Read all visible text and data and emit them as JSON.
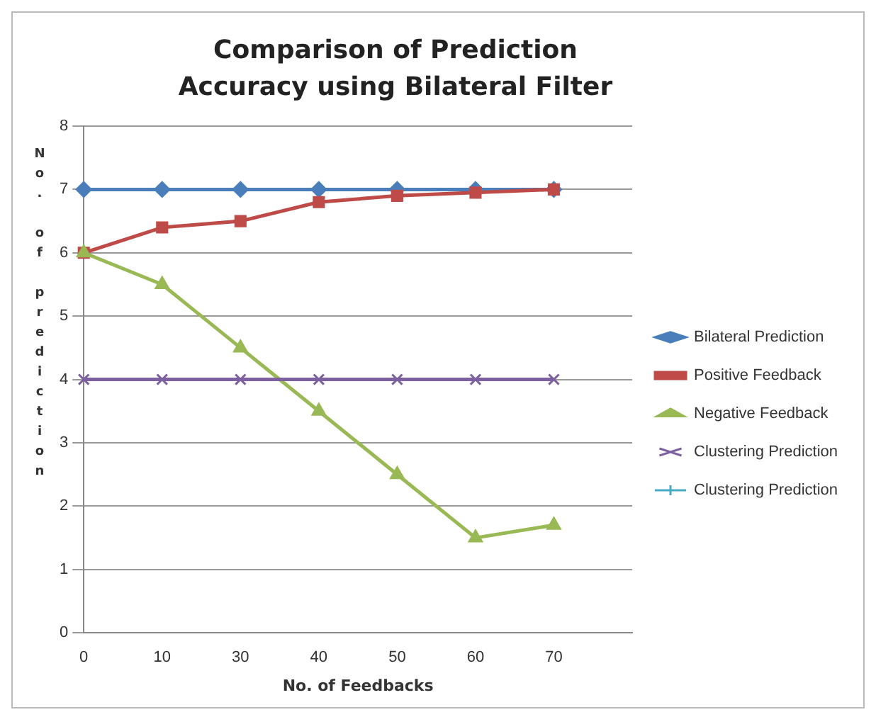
{
  "chart_data": {
    "type": "line",
    "title": "Comparison of Prediction Accuracy using Bilateral Filter",
    "xlabel": "No. of Feedbacks",
    "ylabel": "No. of prediction",
    "categories": [
      "0",
      "10",
      "30",
      "40",
      "50",
      "60",
      "70",
      null
    ],
    "ylim": [
      0,
      8
    ],
    "yticks": [
      0,
      1,
      2,
      3,
      4,
      5,
      6,
      7,
      8
    ],
    "grid": "y",
    "legend": "right",
    "series": [
      {
        "name": "Bilateral Prediction",
        "color": "#4a7ebb",
        "marker": "diamond",
        "values": [
          7,
          7,
          7,
          7,
          7,
          7,
          7,
          null
        ]
      },
      {
        "name": "Positive Feedback",
        "color": "#be4b48",
        "marker": "square",
        "values": [
          6,
          6.4,
          6.5,
          6.8,
          6.9,
          6.95,
          7,
          null
        ]
      },
      {
        "name": "Negative Feedback",
        "color": "#98b954",
        "marker": "triangle",
        "values": [
          6,
          5.5,
          4.5,
          3.5,
          2.5,
          1.5,
          1.7,
          null
        ]
      },
      {
        "name": "Clustering Prediction",
        "color": "#7d60a0",
        "marker": "cross",
        "values": [
          4,
          4,
          4,
          4,
          4,
          4,
          4,
          null
        ]
      },
      {
        "name": "Clustering Prediction",
        "color": "#46aac5",
        "marker": "cross",
        "values": [
          null,
          null,
          null,
          null,
          null,
          null,
          null,
          null
        ]
      }
    ]
  }
}
